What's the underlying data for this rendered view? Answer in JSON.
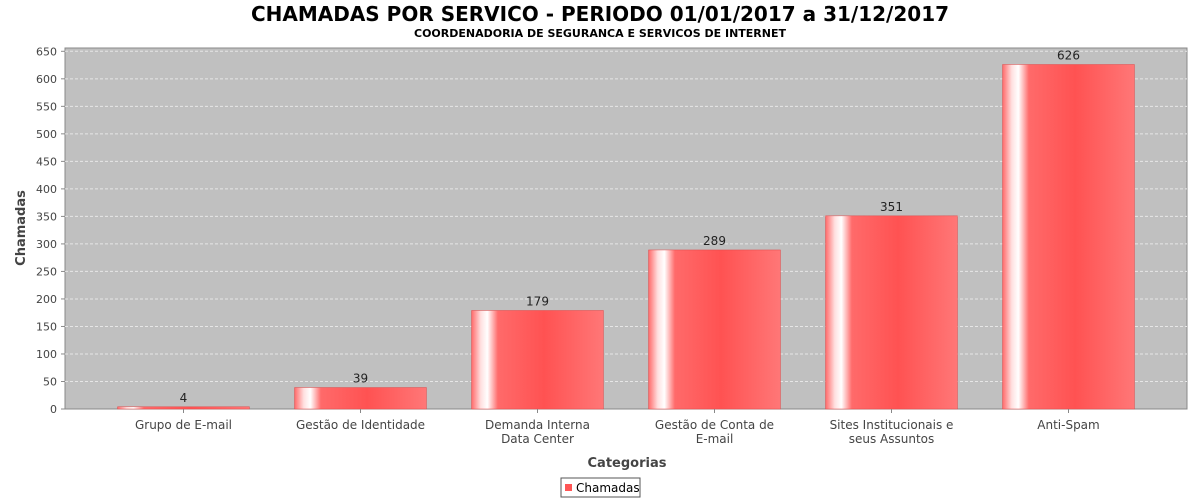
{
  "chart_data": {
    "type": "bar",
    "title": "CHAMADAS POR SERVICO - PERIODO 01/01/2017 a 31/12/2017",
    "subtitle": "COORDENADORIA DE SEGURANCA E SERVICOS DE INTERNET",
    "xlabel": "Categorias",
    "ylabel": "Chamadas",
    "ylim": [
      0,
      650
    ],
    "yticks": [
      0,
      50,
      100,
      150,
      200,
      250,
      300,
      350,
      400,
      450,
      500,
      550,
      600,
      650
    ],
    "grid": true,
    "legend_position": "bottom",
    "categories": [
      [
        "Grupo de E-mail"
      ],
      [
        "Gestão de Identidade"
      ],
      [
        "Demanda Interna",
        "Data Center"
      ],
      [
        "Gestão de Conta de",
        "E-mail"
      ],
      [
        "Sites Institucionais e",
        "seus Assuntos"
      ],
      [
        "Anti-Spam"
      ]
    ],
    "series": [
      {
        "name": "Chamadas",
        "values": [
          4,
          39,
          179,
          289,
          351,
          626
        ],
        "color": "#ff5555"
      }
    ]
  }
}
